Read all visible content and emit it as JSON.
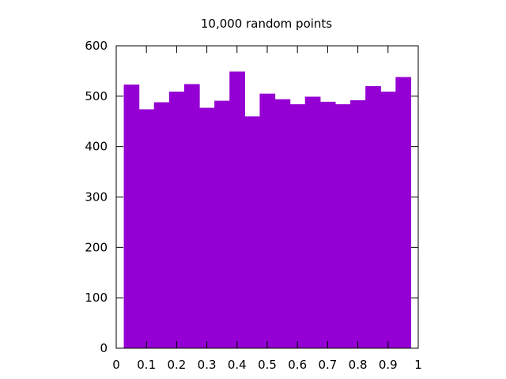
{
  "chart_data": {
    "type": "bar",
    "title": "10,000 random points",
    "xlabel": "",
    "ylabel": "",
    "xlim": [
      0,
      1
    ],
    "ylim": [
      0,
      600
    ],
    "x_ticks": [
      "0",
      "0.1",
      "0.2",
      "0.3",
      "0.4",
      "0.5",
      "0.6",
      "0.7",
      "0.8",
      "0.9",
      "1"
    ],
    "y_ticks": [
      "0",
      "100",
      "200",
      "300",
      "400",
      "500",
      "600"
    ],
    "bin_width": 0.05,
    "bin_starts": [
      0.025,
      0.075,
      0.125,
      0.175,
      0.225,
      0.275,
      0.325,
      0.375,
      0.425,
      0.475,
      0.525,
      0.575,
      0.625,
      0.675,
      0.725,
      0.775,
      0.825,
      0.875,
      0.925
    ],
    "values": [
      523,
      474,
      488,
      509,
      524,
      477,
      491,
      549,
      460,
      505,
      494,
      484,
      499,
      489,
      484,
      492,
      520,
      509,
      538
    ],
    "bar_color": "#9400d3",
    "grid": false,
    "legend": "none"
  }
}
